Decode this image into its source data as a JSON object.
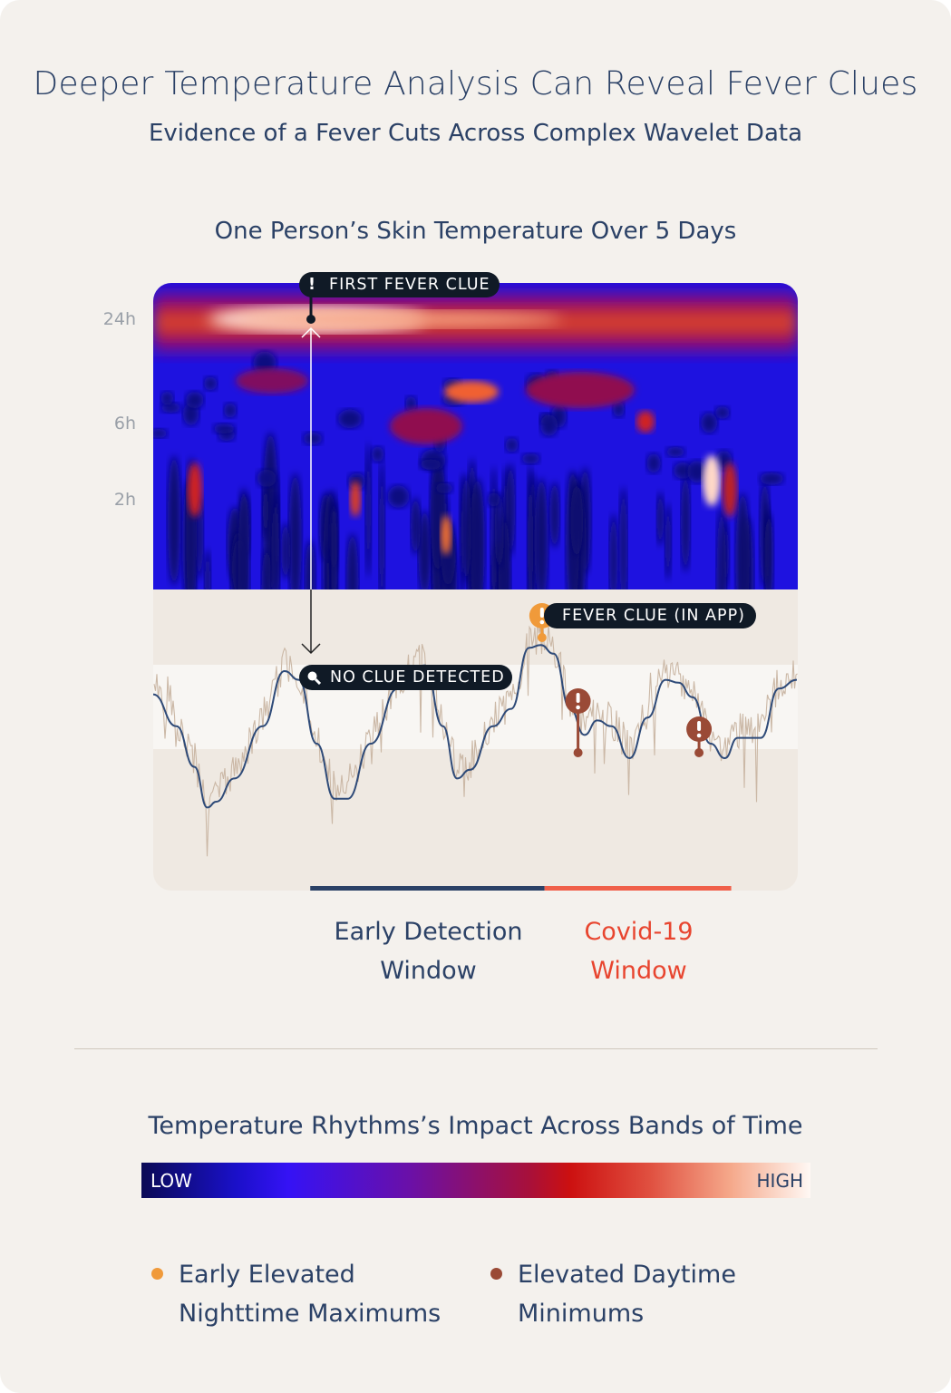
{
  "header": {
    "title": "Deeper Temperature Analysis Can Reveal Fever Clues",
    "subtitle": "Evidence of a Fever Cuts Across Complex Wavelet Data"
  },
  "chart_data": {
    "type": "heatmap",
    "title": "One Person’s Skin Temperature Over 5 Days",
    "y_tick_labels": [
      "24h",
      "6h",
      "2h"
    ],
    "x_range_days": [
      0,
      5
    ],
    "annotations": {
      "first_fever_clue": "FIRST FEVER CLUE",
      "no_clue": "NO CLUE DETECTED",
      "fever_clue_app": "FEVER CLUE (IN APP)"
    },
    "line_series": {
      "x_days": [
        0,
        0.18,
        0.32,
        0.42,
        0.49,
        0.63,
        0.85,
        1.02,
        1.13,
        1.27,
        1.41,
        1.51,
        1.69,
        1.9,
        2.11,
        2.25,
        2.36,
        2.46,
        2.64,
        2.78,
        2.92,
        3.01,
        3.11,
        3.24,
        3.35,
        3.45,
        3.56,
        3.7,
        3.84,
        3.98,
        4.08,
        4.19,
        4.33,
        4.44,
        4.54,
        4.72,
        4.86,
        5.0
      ],
      "y_relative": [
        67,
        56,
        42,
        28,
        30,
        38,
        56,
        75,
        72,
        50,
        31,
        31,
        50,
        69,
        77,
        56,
        38,
        41,
        56,
        62,
        83,
        84,
        81,
        62,
        53,
        58,
        56,
        45,
        59,
        72,
        71,
        66,
        50,
        45,
        52,
        52,
        69,
        72
      ]
    },
    "windows": [
      {
        "label_line1": "Early Detection",
        "label_line2": "Window",
        "color": "#2b4166",
        "start_day": 1.22,
        "end_day": 3.04
      },
      {
        "label_line1": "Covid-19",
        "label_line2": "Window",
        "color": "#f0604a",
        "start_day": 3.04,
        "end_day": 4.49
      }
    ],
    "markers": [
      {
        "type": "early-elevated-nighttime-max",
        "day": 3.02,
        "color": "#f09a3a"
      },
      {
        "type": "elevated-daytime-min",
        "day": 3.3,
        "color": "#9a4a36"
      },
      {
        "type": "elevated-daytime-min",
        "day": 4.24,
        "color": "#9a4a36"
      }
    ]
  },
  "legend": {
    "title": "Temperature Rhythms’s Impact Across Bands of Time",
    "low": "LOW",
    "high": "HIGH",
    "items": [
      {
        "line1": "Early Elevated",
        "line2": "Nighttime Maximums",
        "color": "#f09a3a"
      },
      {
        "line1": "Elevated Daytime",
        "line2": "Minimums",
        "color": "#9a4a36"
      }
    ]
  }
}
